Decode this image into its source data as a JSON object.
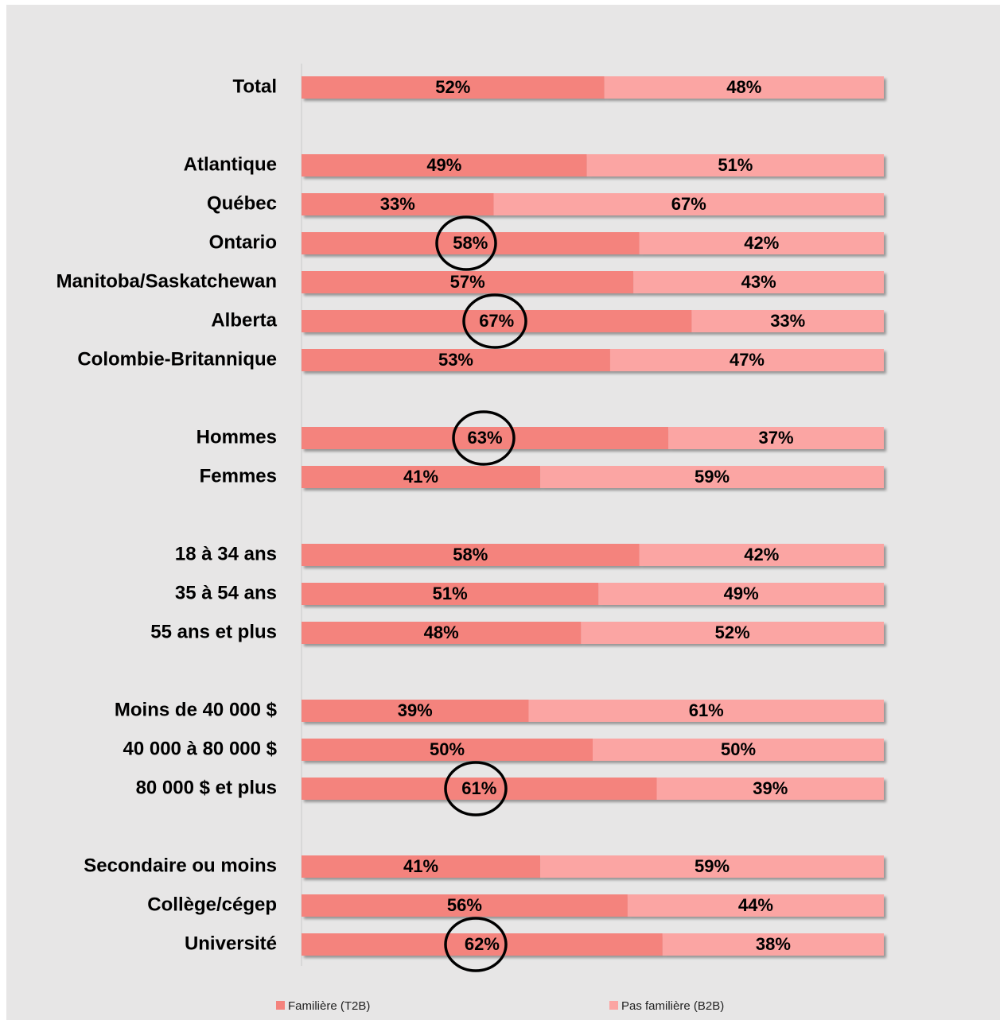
{
  "chart_data": {
    "type": "stacked-bar-horizontal",
    "categories": [
      "Total",
      null,
      "Atlantique",
      "Québec",
      "Ontario",
      "Manitoba/Saskatchewan",
      "Alberta",
      "Colombie-Britannique",
      null,
      "Hommes",
      "Femmes",
      null,
      "18 à 34 ans",
      "35 à 54 ans",
      "55 ans et plus",
      null,
      "Moins de 40 000 $",
      "40 000 à 80 000 $",
      "80 000 $ et plus",
      null,
      "Secondaire ou moins",
      "Collège/cégep",
      "Université"
    ],
    "series": [
      {
        "name": "Familière (T2B)",
        "color": "#f4837d",
        "values": [
          52,
          null,
          49,
          33,
          58,
          57,
          67,
          53,
          null,
          63,
          41,
          null,
          58,
          51,
          48,
          null,
          39,
          50,
          61,
          null,
          41,
          56,
          62
        ],
        "value_labels": [
          "52%",
          null,
          "49%",
          "33%",
          "58%",
          "57%",
          "67%",
          "53%",
          null,
          "63%",
          "41%",
          null,
          "58%",
          "51%",
          "48%",
          null,
          "39%",
          "50%",
          "61%",
          null,
          "41%",
          "56%",
          "62%"
        ]
      },
      {
        "name": "Pas familière (B2B)",
        "color": "#fba5a3",
        "values": [
          48,
          null,
          51,
          67,
          42,
          43,
          33,
          47,
          null,
          37,
          59,
          null,
          42,
          49,
          52,
          null,
          61,
          50,
          39,
          null,
          59,
          44,
          38
        ],
        "value_labels": [
          "48%",
          null,
          "51%",
          "67%",
          "42%",
          "43%",
          "33%",
          "47%",
          null,
          "37%",
          "59%",
          null,
          "42%",
          "49%",
          "52%",
          null,
          "61%",
          "50%",
          "39%",
          null,
          "59%",
          "44%",
          "38%"
        ]
      }
    ],
    "xlim": [
      0,
      100
    ],
    "legend": "bottom"
  }
}
